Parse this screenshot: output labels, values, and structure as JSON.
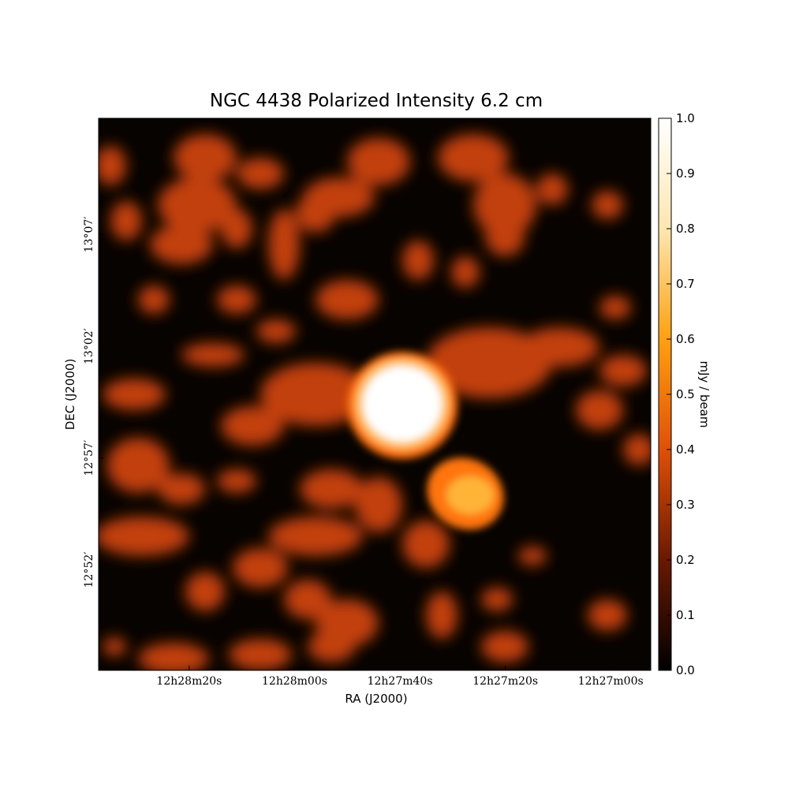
{
  "chart_data": {
    "type": "image",
    "title": "NGC 4438 Polarized Intensity 6.2 cm",
    "xlabel": "RA (J2000)",
    "ylabel": "DEC (J2000)",
    "xlim": [
      44917.2,
      44812.4
    ],
    "xticks": [
      {
        "value": 44900,
        "label": "12h28m20s"
      },
      {
        "value": 44880,
        "label": "12h28m00s"
      },
      {
        "value": 44860,
        "label": "12h27m40s"
      },
      {
        "value": 44840,
        "label": "12h27m20s"
      },
      {
        "value": 44820,
        "label": "12h27m00s"
      }
    ],
    "ylim": [
      767.5,
      792.2
    ],
    "yticks": [
      {
        "value": 787,
        "label": "13°07′"
      },
      {
        "value": 782,
        "label": "13°02′"
      },
      {
        "value": 777,
        "label": "12°57′"
      },
      {
        "value": 772,
        "label": "12°52′"
      }
    ],
    "colorbar": {
      "label": "mJy / beam",
      "clim": [
        0,
        1
      ],
      "ticks": [
        {
          "value": 0,
          "label": "0.0"
        },
        0.1,
        0.2,
        0.3,
        0.4,
        0.5,
        0.6,
        0.7,
        0.8,
        0.9,
        {
          "value": 1,
          "label": "1.0"
        }
      ],
      "colormap": [
        "#000000",
        "#6a1800",
        "#e05008",
        "#ffa010",
        "#ffe6b0",
        "#ffffff"
      ]
    }
  }
}
